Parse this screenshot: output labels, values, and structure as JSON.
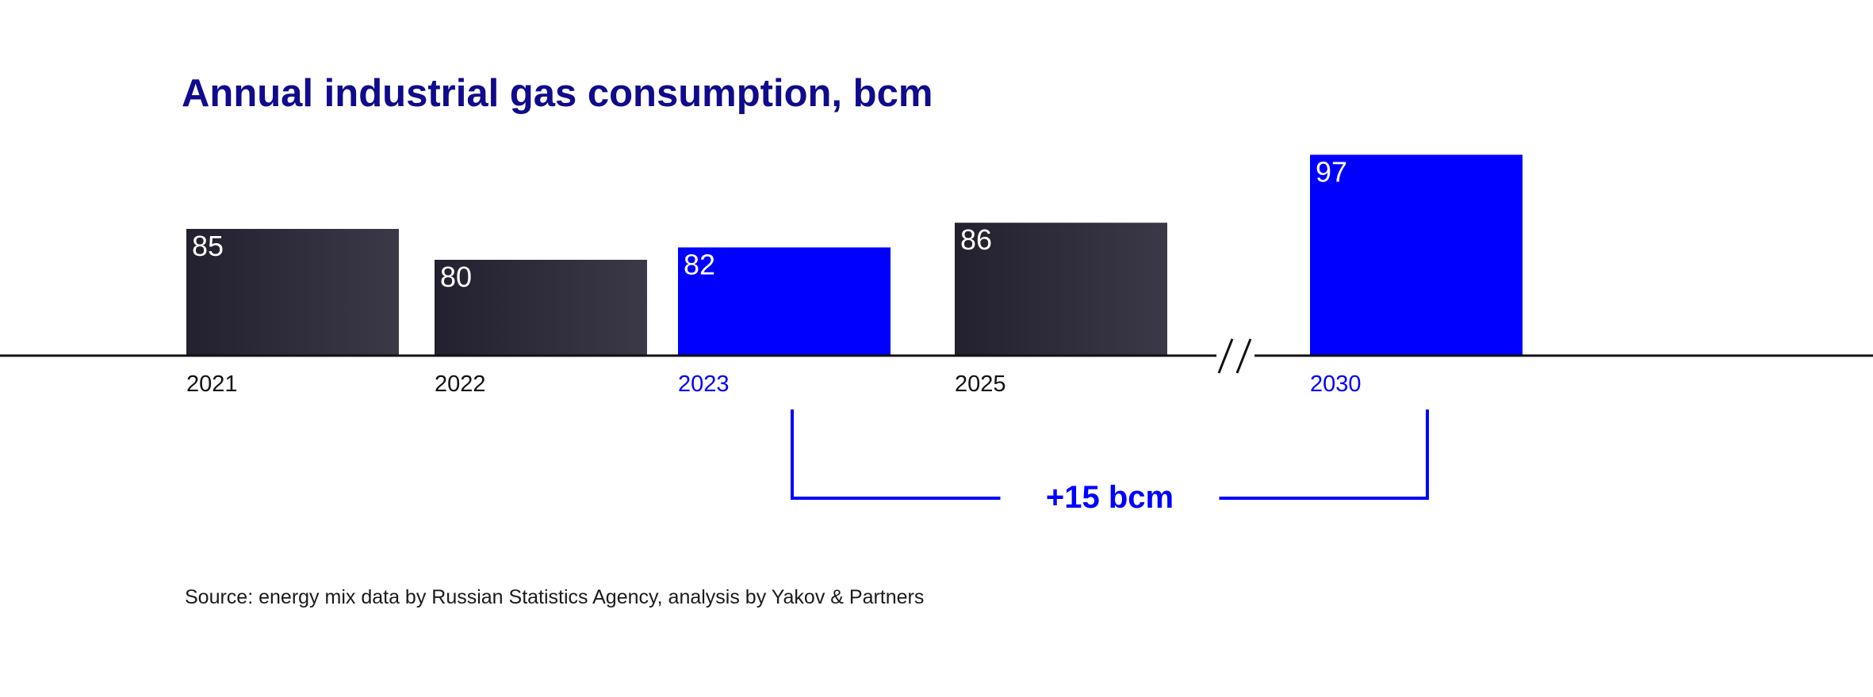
{
  "chart_data": {
    "type": "bar",
    "title": "Annual industrial gas consumption, bcm",
    "categories": [
      "2021",
      "2022",
      "2023",
      "2025",
      "2030"
    ],
    "values": [
      85,
      80,
      82,
      86,
      97
    ],
    "highlighted": [
      "2023",
      "2030"
    ],
    "axis_break": "between 2025 and 2030",
    "annotation": {
      "text": "+15 bcm",
      "from": "2023",
      "to": "2030"
    },
    "xlabel": "",
    "ylabel": "bcm",
    "source": "Source: energy mix data by Russian Statistics Agency, analysis by Yakov & Partners"
  },
  "colors": {
    "title": "#100a8c",
    "highlight": "#0000ff",
    "bar_dark_start": "#23212f",
    "bar_dark_end": "#3b3947",
    "axis": "#111111",
    "label": "#111111",
    "source": "#1a1a1a"
  }
}
